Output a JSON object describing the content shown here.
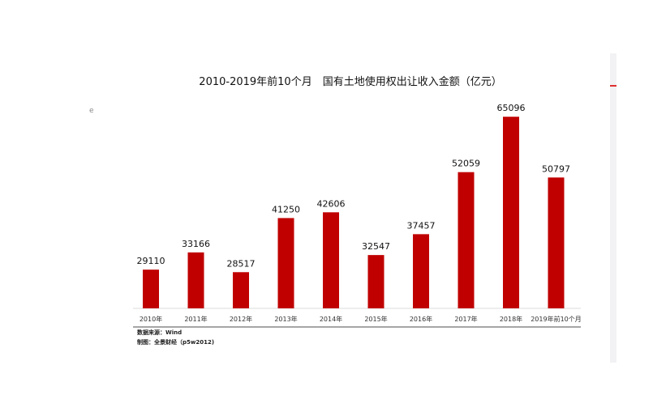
{
  "chart_data": {
    "type": "bar",
    "title": "2010-2019年前10个月　国有土地使用权出让收入金额（亿元）",
    "categories": [
      "2010年",
      "2011年",
      "2012年",
      "2013年",
      "2014年",
      "2015年",
      "2016年",
      "2017年",
      "2018年",
      "2019年前10个月"
    ],
    "values": [
      29110,
      33166,
      28517,
      41250,
      42606,
      32547,
      37457,
      52059,
      65096,
      50797
    ],
    "value_labels": [
      "29110",
      "33166",
      "28517",
      "41250",
      "42606",
      "32547",
      "37457",
      "52059",
      "65096",
      "50797"
    ],
    "xlabel": "",
    "ylabel": "",
    "ylim": [
      20000,
      66000
    ],
    "bar_color": "#c00000",
    "grid": false
  },
  "source": "数据来源：Wind",
  "credit": "制图：全景财经（p5w2012)",
  "stray_mark": "e"
}
